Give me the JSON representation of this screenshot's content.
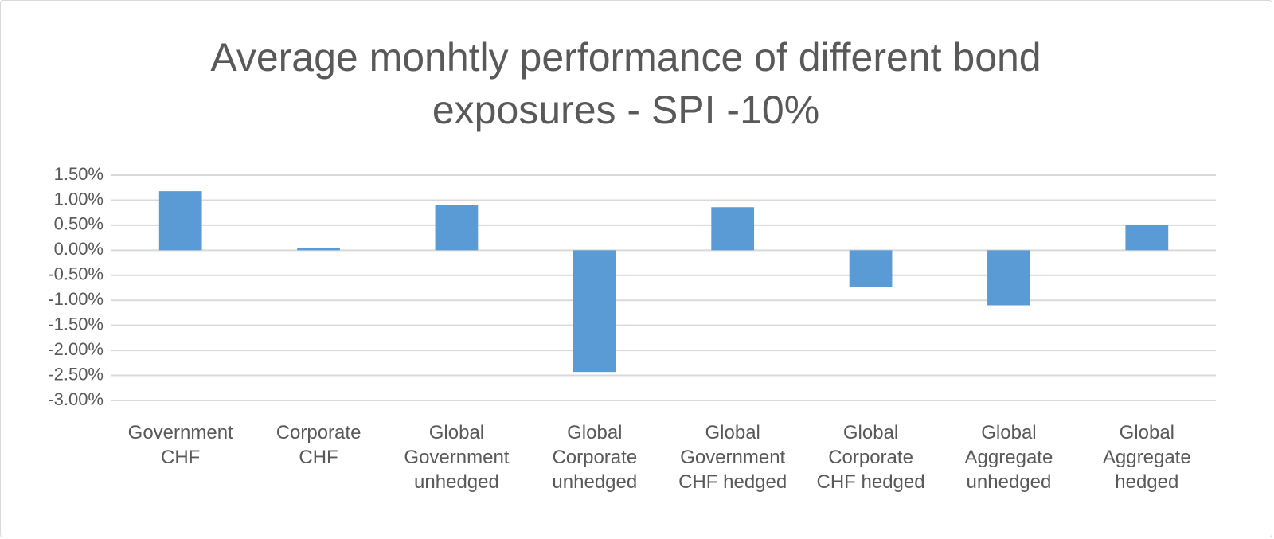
{
  "chart_data": {
    "type": "bar",
    "title": "Average monhtly performance of different bond exposures - SPI -10%",
    "categories": [
      "Government CHF",
      "Corporate CHF",
      "Global Government unhedged",
      "Global Corporate unhedged",
      "Global Government CHF hedged",
      "Global Corporate CHF hedged",
      "Global Aggregate unhedged",
      "Global Aggregate hedged"
    ],
    "values": [
      1.18,
      0.05,
      0.9,
      -2.43,
      0.86,
      -0.73,
      -1.1,
      0.51
    ],
    "color": "#5b9bd5",
    "ylim": [
      -3,
      1.5
    ],
    "yticks": [
      {
        "value": 1.5,
        "label": "1.50%"
      },
      {
        "value": 1,
        "label": "1.00%"
      },
      {
        "value": 0.5,
        "label": "0.50%"
      },
      {
        "value": 0,
        "label": "0.00%"
      },
      {
        "value": -0.5,
        "label": "-0.50%"
      },
      {
        "value": -1,
        "label": "-1.00%"
      },
      {
        "value": -1.5,
        "label": "-1.50%"
      },
      {
        "value": -2,
        "label": "-2.00%"
      },
      {
        "value": -2.5,
        "label": "-2.50%"
      },
      {
        "value": -3,
        "label": "-3.00%"
      }
    ],
    "grid": true
  }
}
